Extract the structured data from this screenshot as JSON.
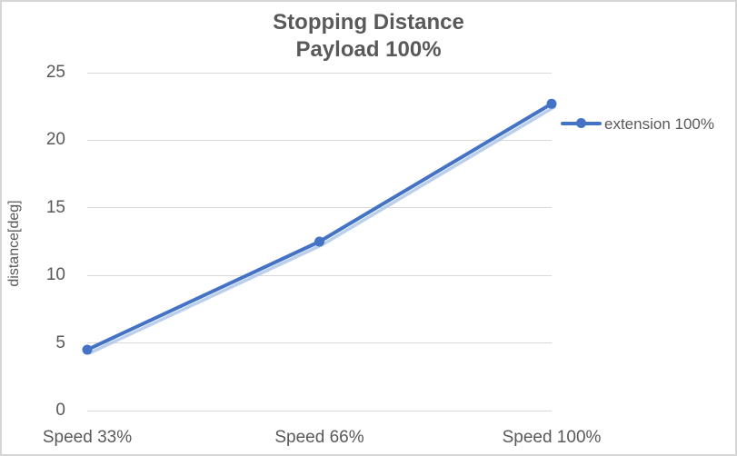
{
  "window": {
    "background_color": "#FFFFFF",
    "border_color": "#D6D6D6",
    "text_color": "#595959",
    "gridline_color": "#D9D9D9"
  },
  "chart_data": {
    "type": "line",
    "title": "Stopping Distance",
    "subtitle": "Payload 100%",
    "ylabel": "distance[deg]",
    "xlabel": "",
    "categories": [
      "Speed 33%",
      "Speed 66%",
      "Speed 100%"
    ],
    "series": [
      {
        "name": "extension 100%",
        "values": [
          4.5,
          12.5,
          22.7
        ],
        "color": "#4472C4",
        "shadow_color": "#AEC7E8",
        "marker": "circle"
      }
    ],
    "ylim": [
      0,
      25
    ],
    "yticks": [
      0,
      5,
      10,
      15,
      20,
      25
    ],
    "grid": "horizontal",
    "legend_position": "right"
  }
}
